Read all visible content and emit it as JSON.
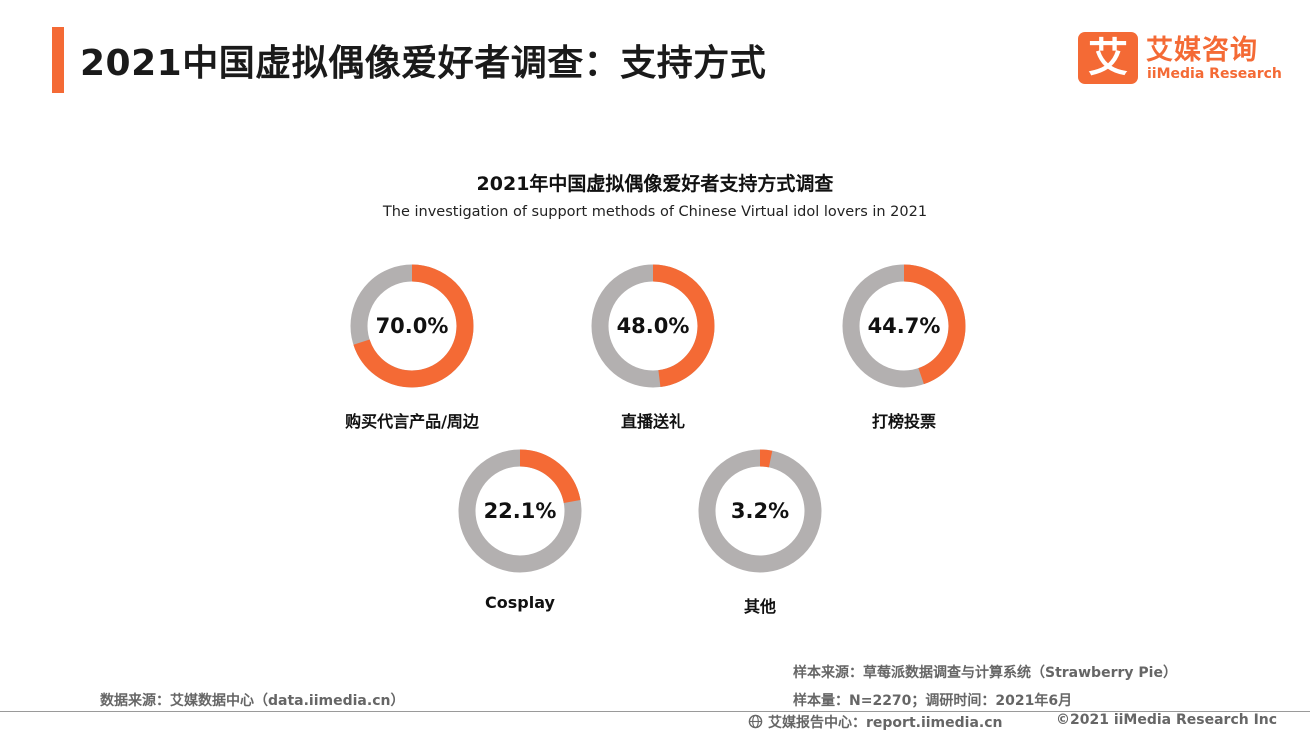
{
  "header": {
    "title": "2021中国虚拟偶像爱好者调查：支持方式"
  },
  "logo": {
    "mark": "艾",
    "name_cn": "艾媒咨询",
    "name_en": "iiMedia Research"
  },
  "chart_data": {
    "type": "donut",
    "title": "2021年中国虚拟偶像爱好者支持方式调查",
    "subtitle": "The investigation of support methods of Chinese Virtual idol lovers in 2021",
    "unit": "%",
    "categories": [
      "购买代言产品/周边",
      "直播送礼",
      "打榜投票",
      "Cosplay",
      "其他"
    ],
    "values": [
      70.0,
      48.0,
      44.7,
      22.1,
      3.2
    ],
    "value_labels": [
      "70.0%",
      "48.0%",
      "44.7%",
      "22.1%",
      "3.2%"
    ],
    "colors": {
      "filled": "#f46a35",
      "remainder": "#b3b0b0"
    }
  },
  "footer": {
    "data_source": "数据来源：艾媒数据中心（data.iimedia.cn）",
    "sample_source": "样本来源：草莓派数据调查与计算系统（Strawberry Pie）",
    "sample_size": "样本量：N=2270；调研时间：2021年6月",
    "report_center": "艾媒报告中心：report.iimedia.cn",
    "copyright": "©2021  iiMedia Research  Inc"
  },
  "icons": {
    "globe": "globe-icon"
  }
}
